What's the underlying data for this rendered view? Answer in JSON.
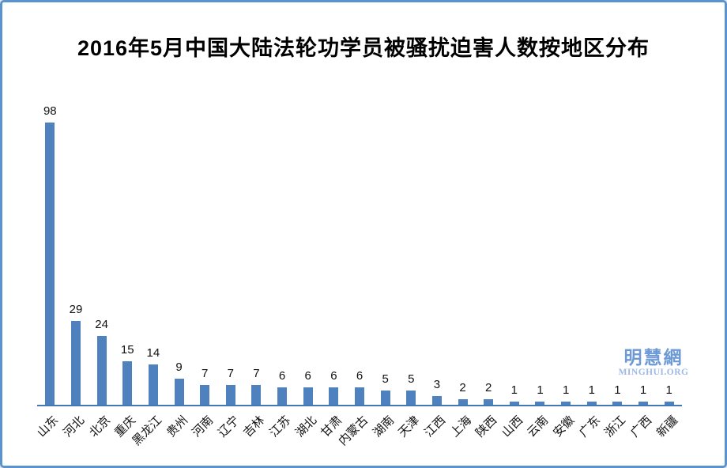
{
  "title": "2016年5月中国大陆法轮功学员被骚扰迫害人数按地区分布",
  "watermark": {
    "cjk": "明慧網",
    "latin": "MINGHUI.ORG",
    "color": "#6d99d6"
  },
  "frame": {
    "border_color": "#5b93d0",
    "background": "#ffffff"
  },
  "chart_data": {
    "type": "bar",
    "title": "2016年5月中国大陆法轮功学员被骚扰迫害人数按地区分布",
    "categories": [
      "山东",
      "河北",
      "北京",
      "重庆",
      "黑龙江",
      "贵州",
      "河南",
      "辽宁",
      "吉林",
      "江苏",
      "湖北",
      "甘肃",
      "内蒙古",
      "湖南",
      "天津",
      "江西",
      "上海",
      "陕西",
      "山西",
      "云南",
      "安徽",
      "广东",
      "浙江",
      "广西",
      "新疆"
    ],
    "values": [
      98,
      29,
      24,
      15,
      14,
      9,
      7,
      7,
      7,
      6,
      6,
      6,
      6,
      5,
      5,
      3,
      2,
      2,
      1,
      1,
      1,
      1,
      1,
      1,
      1
    ],
    "value_labels_shown": true,
    "xlabel": "",
    "ylabel": "",
    "ylim": [
      0,
      100
    ],
    "grid": false,
    "legend": "none",
    "bar_color": "#4e81bd",
    "axis_color": "#4277b8",
    "x_label_rotation_deg": -45
  }
}
